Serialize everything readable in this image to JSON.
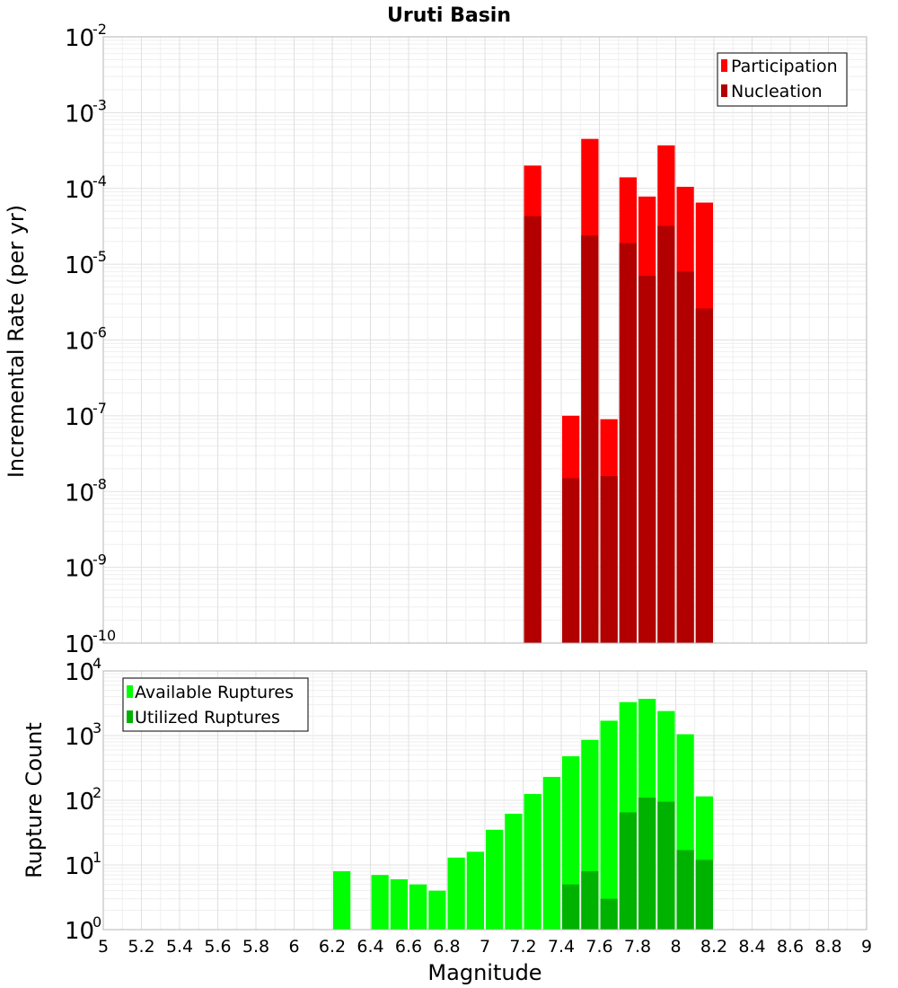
{
  "chart_data": [
    {
      "type": "bar",
      "title": "Uruti Basin",
      "ylabel": "Incremental Rate (per yr)",
      "yscale": "log",
      "ylim_exponents": [
        -10,
        -2
      ],
      "xlim": [
        5,
        9
      ],
      "grid": true,
      "legend_position": "top-right",
      "x": [
        7.25,
        7.45,
        7.55,
        7.65,
        7.75,
        7.85,
        7.95,
        8.05,
        8.15
      ],
      "series": [
        {
          "name": "Participation",
          "color": "#ff0000",
          "values": [
            0.0002,
            1e-07,
            0.00045,
            9e-08,
            0.00014,
            7.8e-05,
            0.00037,
            0.000105,
            6.5e-05
          ]
        },
        {
          "name": "Nucleation",
          "color": "#b20000",
          "values": [
            4.3e-05,
            1.5e-08,
            2.4e-05,
            1.6e-08,
            1.9e-05,
            7e-06,
            3.2e-05,
            8e-06,
            2.6e-06
          ]
        }
      ]
    },
    {
      "type": "bar",
      "ylabel": "Rupture Count",
      "xlabel": "Magnitude",
      "yscale": "log",
      "ylim_exponents": [
        0,
        4
      ],
      "xlim": [
        5,
        9
      ],
      "grid": true,
      "legend_position": "top-left",
      "x": [
        6.25,
        6.45,
        6.55,
        6.65,
        6.75,
        6.85,
        6.95,
        7.05,
        7.15,
        7.25,
        7.35,
        7.45,
        7.55,
        7.65,
        7.75,
        7.85,
        7.95,
        8.05,
        8.15
      ],
      "series": [
        {
          "name": "Available Ruptures",
          "color": "#00ff00",
          "values": [
            8,
            7,
            6,
            5,
            4,
            13,
            16,
            35,
            62,
            125,
            230,
            480,
            860,
            1700,
            3300,
            3700,
            2400,
            1050,
            115
          ]
        },
        {
          "name": "Utilized Ruptures",
          "color": "#00b200",
          "values": [
            null,
            null,
            null,
            null,
            null,
            null,
            null,
            null,
            null,
            1,
            null,
            5,
            8,
            3,
            65,
            110,
            95,
            17,
            12
          ]
        }
      ]
    }
  ],
  "x_ticks": [
    "5",
    "5.2",
    "5.4",
    "5.6",
    "5.8",
    "6",
    "6.2",
    "6.4",
    "6.6",
    "6.8",
    "7",
    "7.2",
    "7.4",
    "7.6",
    "7.8",
    "8",
    "8.2",
    "8.4",
    "8.6",
    "8.8",
    "9"
  ],
  "top_y_ticks": [
    {
      "base": "10",
      "exp": "-2"
    },
    {
      "base": "10",
      "exp": "-3"
    },
    {
      "base": "10",
      "exp": "-4"
    },
    {
      "base": "10",
      "exp": "-5"
    },
    {
      "base": "10",
      "exp": "-6"
    },
    {
      "base": "10",
      "exp": "-7"
    },
    {
      "base": "10",
      "exp": "-8"
    },
    {
      "base": "10",
      "exp": "-9"
    },
    {
      "base": "10",
      "exp": "-10"
    }
  ],
  "bottom_y_ticks": [
    {
      "base": "10",
      "exp": "4"
    },
    {
      "base": "10",
      "exp": "3"
    },
    {
      "base": "10",
      "exp": "2"
    },
    {
      "base": "10",
      "exp": "1"
    },
    {
      "base": "10",
      "exp": "0"
    }
  ]
}
